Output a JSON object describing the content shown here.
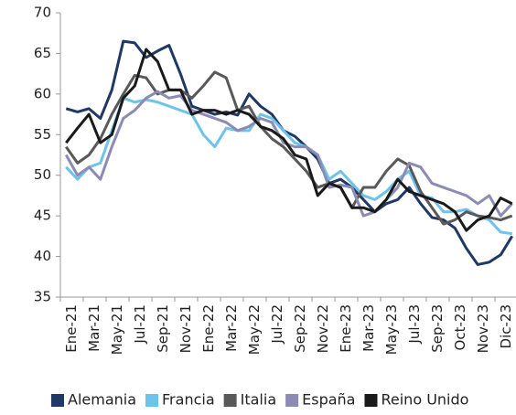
{
  "chart_data": {
    "type": "line",
    "categories": [
      "Ene-21",
      null,
      "Mar-21",
      null,
      "May-21",
      null,
      "Jul-21",
      null,
      "Sep-21",
      null,
      "Nov-21",
      null,
      "Ene-22",
      null,
      "Mar-22",
      null,
      "May-22",
      null,
      "Jul-22",
      null,
      "Sep-22",
      null,
      "Nov-22",
      null,
      "Ene-23",
      null,
      "Mar-23",
      null,
      "May-23",
      null,
      "Jul-23",
      null,
      "Sep-23",
      null,
      "Oct-23",
      null,
      "Nov-23",
      null,
      "Dic-23",
      null
    ],
    "series": [
      {
        "name": "Alemania",
        "color": "#1f3864",
        "values": [
          58.2,
          57.8,
          58.2,
          57,
          60.5,
          66.5,
          66.3,
          64.5,
          65.3,
          66,
          62.5,
          58.5,
          58,
          57.5,
          57.8,
          57.4,
          60,
          58.5,
          57.5,
          55.5,
          54.8,
          53.5,
          52,
          49,
          49.5,
          48.5,
          47,
          45.5,
          46.5,
          47,
          48.5,
          46.5,
          44.8,
          44.5,
          43.5,
          41,
          39,
          39.3,
          40.2,
          42.5
        ]
      },
      {
        "name": "Francia",
        "color": "#6ec3ea",
        "values": [
          51,
          49.5,
          51,
          51.5,
          55.5,
          59.5,
          59,
          59.3,
          59,
          58.5,
          58,
          57.5,
          55,
          53.5,
          55.8,
          55.5,
          55.5,
          57.5,
          57,
          55.5,
          54,
          53.5,
          52.5,
          49.5,
          50.5,
          49,
          47.5,
          47,
          48,
          49.5,
          50.5,
          47.5,
          47.2,
          45.5,
          45.5,
          45.8,
          45,
          44.5,
          43,
          42.8
        ]
      },
      {
        "name": "Italia",
        "color": "#595959",
        "values": [
          53.5,
          51.5,
          52.5,
          54.5,
          57.5,
          60,
          62.3,
          62,
          60,
          60.5,
          60.5,
          59.5,
          61,
          62.7,
          62,
          58,
          58.5,
          56,
          54.5,
          53.5,
          52,
          50.5,
          48.5,
          49,
          48.5,
          46,
          48.5,
          48.5,
          50.5,
          52,
          51.2,
          48,
          46,
          44,
          44.5,
          45.5,
          45,
          44.8,
          44.5,
          45
        ]
      },
      {
        "name": "España",
        "color": "#8b8bb3",
        "values": [
          52.5,
          50,
          51,
          49.5,
          53.5,
          57,
          58,
          59.5,
          60.3,
          59.5,
          59.8,
          58,
          57.5,
          57,
          56.5,
          55.5,
          56,
          57,
          56.5,
          54,
          53.5,
          53.5,
          52.5,
          48.5,
          48.8,
          48.5,
          45,
          45.5,
          47,
          48.5,
          51.5,
          51,
          49,
          48.5,
          48,
          47.5,
          46.5,
          47.5,
          45,
          46.5
        ]
      },
      {
        "name": "Reino Unido",
        "color": "#1a1a1a",
        "values": [
          54,
          55.8,
          57.5,
          54,
          55,
          59.5,
          61,
          65.5,
          64,
          60.5,
          60.5,
          57.5,
          58,
          58,
          57.5,
          58,
          57.5,
          56,
          55.5,
          54.5,
          52.5,
          52,
          47.5,
          49,
          48.5,
          46,
          46,
          45.5,
          47,
          49.5,
          48,
          47.5,
          47,
          46.5,
          45.5,
          43.2,
          44.5,
          45,
          47.2,
          46.5
        ]
      }
    ],
    "ylim": [
      35,
      70
    ],
    "yticks": [
      35,
      40,
      45,
      50,
      55,
      60,
      65,
      70
    ],
    "grid": false,
    "legend": "bottom"
  }
}
